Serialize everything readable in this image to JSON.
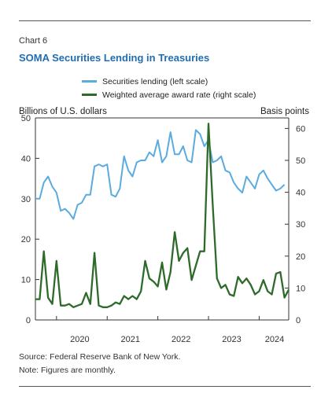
{
  "chart_number": "Chart 6",
  "title": "SOMA Securities Lending in Treasuries",
  "left_unit": "Billions of U.S. dollars",
  "right_unit": "Basis points",
  "source": "Source: Federal Reserve Bank of New York.",
  "note": "Note: Figures are monthly.",
  "colors": {
    "lending": "#5aabe0",
    "rate": "#2e6b2a"
  },
  "chart_data": {
    "type": "line",
    "x_start": "2019-08",
    "frequency": "monthly",
    "x_tick_labels": [
      "2020",
      "2021",
      "2022",
      "2023",
      "2024"
    ],
    "y_left": {
      "ticks": [
        0,
        10,
        20,
        30,
        40,
        50
      ],
      "range": [
        0,
        50
      ]
    },
    "y_right": {
      "ticks": [
        0,
        10,
        20,
        30,
        40,
        50,
        60
      ],
      "range": [
        0,
        63.3
      ]
    },
    "grid": false,
    "legend_position": "top",
    "series": [
      {
        "name": "Securities lending (left scale)",
        "axis": "left",
        "values": [
          30,
          30,
          34,
          35.5,
          33,
          31.5,
          27,
          27.5,
          26.5,
          25,
          28.5,
          29,
          31,
          31,
          38,
          38.5,
          38,
          38.5,
          31,
          30.5,
          32.5,
          40.5,
          37,
          35.5,
          39,
          39.5,
          39.5,
          41.5,
          40.5,
          44.5,
          39,
          40.5,
          46.5,
          41,
          41,
          43,
          39.5,
          39,
          47,
          46,
          43,
          44.5,
          39,
          39.5,
          40.5,
          37,
          36.5,
          34,
          32.5,
          31.5,
          35.5,
          34,
          32.5,
          36,
          37,
          35,
          33.5,
          32,
          32.5,
          33.5
        ]
      },
      {
        "name": "Weighted average award rate (right scale)",
        "axis": "right",
        "values": [
          6.5,
          6.5,
          21.5,
          7,
          5,
          18.5,
          4.5,
          4.5,
          5,
          4,
          4.5,
          5,
          8.5,
          5,
          21,
          4.5,
          4,
          4,
          4.5,
          5.5,
          5,
          7.5,
          6.5,
          7.5,
          6.5,
          9,
          18.5,
          13,
          12,
          10.5,
          18,
          9.5,
          15,
          27.5,
          18.5,
          21,
          22.5,
          12.5,
          17,
          21.5,
          21.5,
          61.5,
          36,
          13,
          10,
          11,
          8,
          7.5,
          13.5,
          11.5,
          13,
          11,
          8,
          9,
          12.5,
          9,
          8,
          14.5,
          15,
          7,
          9.5
        ]
      }
    ]
  }
}
